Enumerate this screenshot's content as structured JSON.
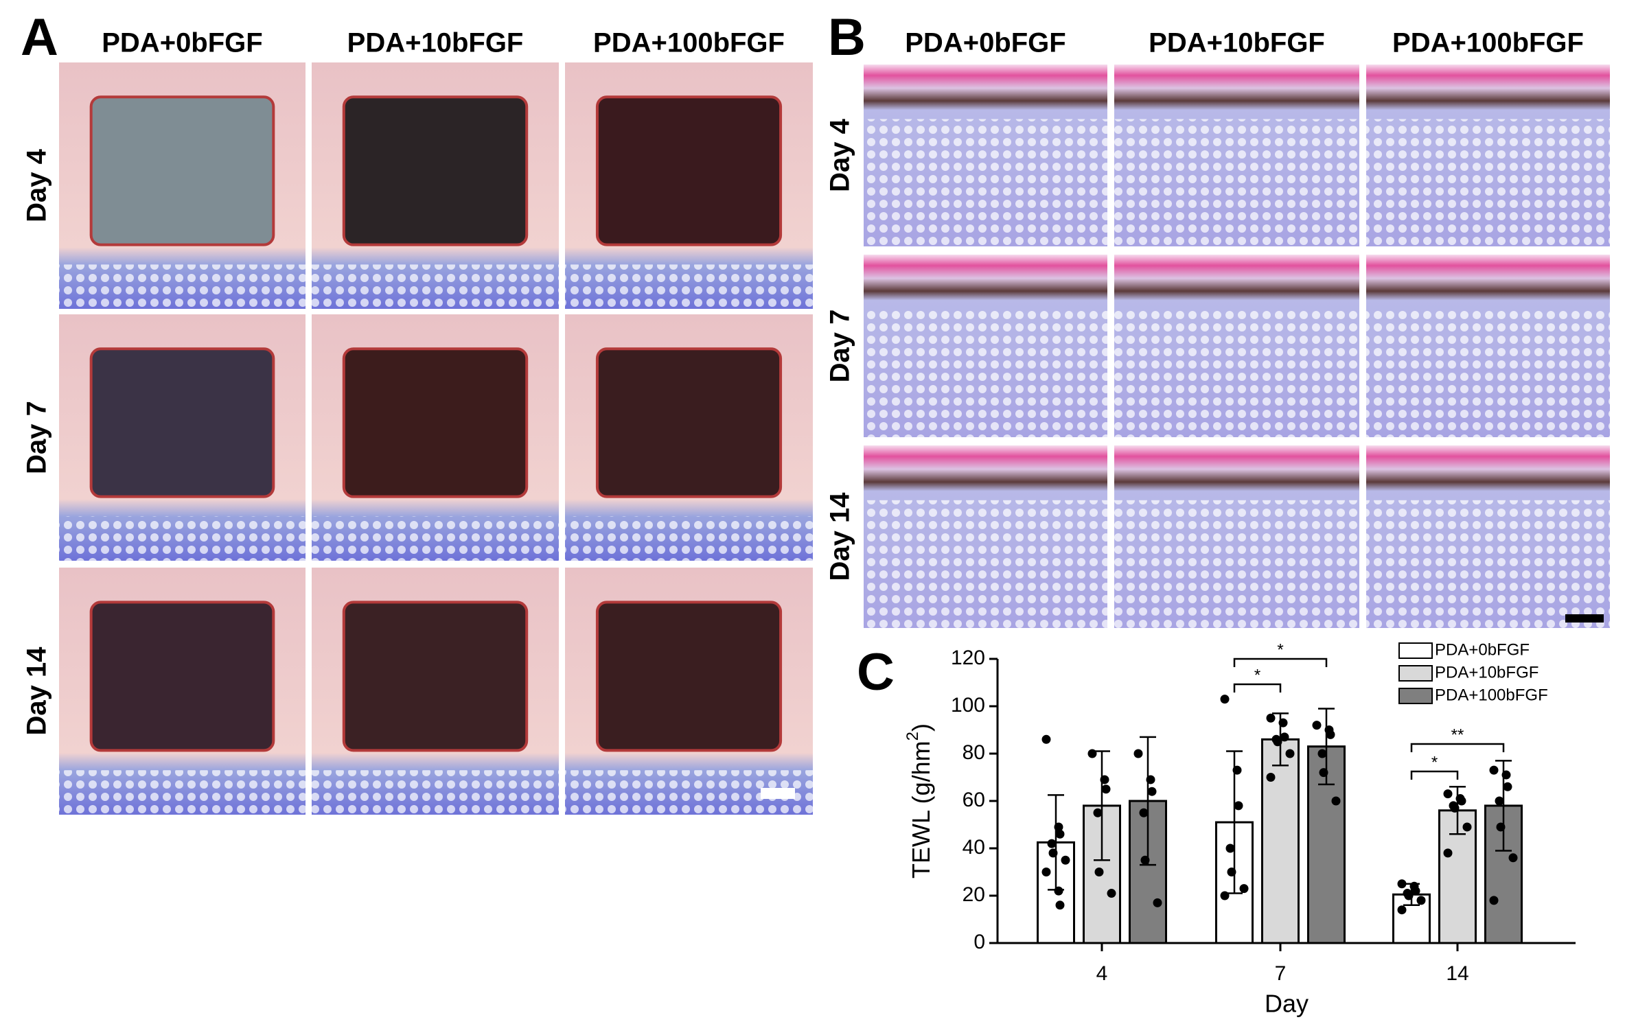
{
  "panel_a": {
    "label": "A",
    "columns": [
      "PDA+0bFGF",
      "PDA+10bFGF",
      "PDA+100bFGF"
    ],
    "rows": [
      "Day 4",
      "Day 7",
      "Day 14"
    ]
  },
  "panel_b": {
    "label": "B",
    "columns": [
      "PDA+0bFGF",
      "PDA+10bFGF",
      "PDA+100bFGF"
    ],
    "rows": [
      "Day 4",
      "Day 7",
      "Day 14"
    ]
  },
  "chart_data": {
    "label": "C",
    "type": "bar",
    "x_label": "Day",
    "y_label": [
      "TEWL  (g/hm",
      "2",
      ")"
    ],
    "categories": [
      "4",
      "7",
      "14"
    ],
    "ylim": [
      0,
      120
    ],
    "yticks": [
      0,
      20,
      40,
      60,
      80,
      100,
      120
    ],
    "legend": "top-right",
    "series": [
      {
        "name": "PDA+0bFGF",
        "color": "#ffffff",
        "values": [
          42.5,
          51,
          20.5
        ],
        "errors": [
          20,
          30,
          4.5
        ],
        "points": [
          [
            86,
            49,
            46,
            42,
            38,
            35,
            30,
            22,
            16
          ],
          [
            103,
            73,
            58,
            40,
            30,
            23,
            20
          ],
          [
            25,
            24,
            22,
            21,
            20,
            18,
            14
          ]
        ]
      },
      {
        "name": "PDA+10bFGF",
        "color": "#d9d9d9",
        "values": [
          58,
          86,
          56
        ],
        "errors": [
          23,
          11,
          10
        ],
        "points": [
          [
            80,
            69,
            65,
            55,
            30,
            21
          ],
          [
            95,
            93,
            87,
            86,
            85,
            80,
            70
          ],
          [
            63,
            61,
            60,
            58,
            57,
            49,
            38
          ]
        ]
      },
      {
        "name": "PDA+100bFGF",
        "color": "#7f7f7f",
        "values": [
          60,
          83,
          58
        ],
        "errors": [
          27,
          16,
          19
        ],
        "points": [
          [
            80,
            69,
            64,
            55,
            35,
            17
          ],
          [
            92,
            90,
            88,
            80,
            72,
            60
          ],
          [
            73,
            71,
            66,
            60,
            49,
            36,
            18
          ]
        ]
      }
    ],
    "annotations": [
      "*",
      "*",
      "*",
      "**"
    ]
  }
}
